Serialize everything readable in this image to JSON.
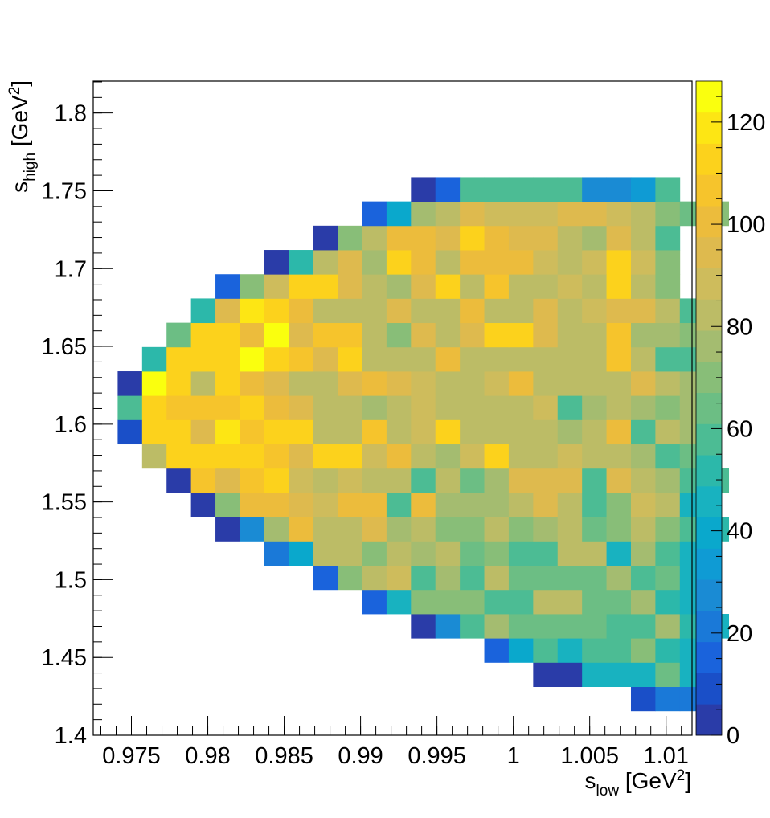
{
  "chart_data": {
    "type": "heatmap",
    "title": "",
    "xlabel": {
      "main": "s",
      "sub": "low",
      "unit_open": " [GeV",
      "sup": "2",
      "unit_close": "]"
    },
    "ylabel": {
      "main": "s",
      "sub": "high",
      "unit_open": " [GeV",
      "sup": "2",
      "unit_close": "]"
    },
    "xlim": [
      0.9725,
      1.0117
    ],
    "ylim": [
      1.4,
      1.8205
    ],
    "x_bin_width": 0.0016,
    "y_bin_width": 0.0156,
    "x_first_bin": 0.9741,
    "y_first_bin": 1.4156,
    "zlim": [
      0,
      128
    ],
    "x_ticks": [
      0.975,
      0.98,
      0.985,
      0.99,
      0.995,
      1.0,
      1.005,
      1.01
    ],
    "x_tick_labels": [
      "0.975",
      "0.98",
      "0.985",
      "0.99",
      "0.995",
      "1",
      "1.005",
      "1.01"
    ],
    "y_ticks": [
      1.4,
      1.45,
      1.5,
      1.55,
      1.6,
      1.65,
      1.7,
      1.75,
      1.8
    ],
    "y_tick_labels": [
      "1.4",
      "1.45",
      "1.5",
      "1.55",
      "1.6",
      "1.65",
      "1.7",
      "1.75",
      "1.8"
    ],
    "z_ticks": [
      0,
      20,
      40,
      60,
      80,
      100,
      120
    ],
    "z_tick_labels": [
      "0",
      "20",
      "40",
      "60",
      "80",
      "100",
      "120"
    ],
    "grid": false,
    "colorbar": "right",
    "palette": [
      "#2a3ca8",
      "#1a4fc8",
      "#1a63dc",
      "#1a79d8",
      "#1a8bd4",
      "#0f9bd4",
      "#0aa8cc",
      "#18b2c0",
      "#2cb8aa",
      "#4cbc94",
      "#6cbe84",
      "#88be78",
      "#a4bc70",
      "#bcbc66",
      "#cebc5c",
      "#deba4e",
      "#ecbc3c",
      "#f6c42c",
      "#fcd21c",
      "#fde614",
      "#faff0e"
    ],
    "rows": [
      {
        "start": 21,
        "values": [
          10,
          20,
          20
        ]
      },
      {
        "start": 17,
        "values": [
          5,
          5,
          45,
          45,
          45,
          65,
          45
        ]
      },
      {
        "start": 15,
        "values": [
          15,
          40,
          55,
          45,
          55,
          55,
          68,
          50,
          45
        ]
      },
      {
        "start": 12,
        "values": [
          5,
          30,
          55,
          75,
          65,
          65,
          65,
          65,
          60,
          60,
          75,
          50,
          45
        ]
      },
      {
        "start": 10,
        "values": [
          15,
          45,
          70,
          70,
          70,
          60,
          55,
          80,
          85,
          65,
          65,
          75,
          50,
          45
        ]
      },
      {
        "start": 8,
        "values": [
          15,
          70,
          85,
          88,
          60,
          75,
          60,
          80,
          65,
          65,
          65,
          65,
          75,
          55,
          65,
          45
        ]
      },
      {
        "start": 6,
        "values": [
          20,
          40,
          80,
          80,
          70,
          85,
          75,
          80,
          65,
          70,
          60,
          60,
          85,
          85,
          45,
          75,
          55,
          45
        ]
      },
      {
        "start": 4,
        "values": [
          5,
          30,
          75,
          100,
          80,
          80,
          95,
          75,
          85,
          70,
          70,
          80,
          70,
          75,
          85,
          65,
          70,
          80,
          70,
          60,
          50
        ]
      },
      {
        "start": 3,
        "values": [
          5,
          70,
          100,
          100,
          95,
          90,
          100,
          100,
          55,
          100,
          75,
          75,
          75,
          85,
          95,
          80,
          55,
          70,
          90,
          85,
          45
        ]
      },
      {
        "start": 2,
        "values": [
          5,
          105,
          95,
          105,
          110,
          90,
          85,
          90,
          85,
          80,
          60,
          85,
          65,
          75,
          95,
          95,
          95,
          55,
          95,
          80,
          75,
          60,
          55
        ]
      },
      {
        "start": 1,
        "values": [
          80,
          110,
          110,
          115,
          110,
          105,
          95,
          115,
          110,
          90,
          100,
          85,
          75,
          90,
          115,
          85,
          80,
          90,
          80,
          80,
          75,
          60,
          65
        ]
      },
      {
        "start": 0,
        "values": [
          10,
          110,
          110,
          95,
          120,
          105,
          110,
          110,
          85,
          85,
          105,
          80,
          90,
          110,
          80,
          85,
          80,
          85,
          75,
          80,
          100,
          60,
          85,
          75
        ]
      },
      {
        "start": 0,
        "values": [
          60,
          110,
          105,
          105,
          105,
          110,
          100,
          95,
          85,
          80,
          75,
          85,
          90,
          80,
          85,
          85,
          80,
          90,
          60,
          75,
          80,
          75,
          70,
          75
        ]
      },
      {
        "start": 0,
        "values": [
          5,
          125,
          115,
          85,
          110,
          100,
          95,
          85,
          85,
          95,
          100,
          95,
          90,
          80,
          80,
          90,
          100,
          85,
          85,
          85,
          80,
          95,
          85,
          75
        ]
      },
      {
        "start": 1,
        "values": [
          50,
          115,
          110,
          110,
          125,
          110,
          105,
          95,
          110,
          85,
          85,
          80,
          100,
          85,
          85,
          85,
          80,
          85,
          85,
          105,
          85,
          60,
          55
        ]
      },
      {
        "start": 2,
        "values": [
          65,
          110,
          110,
          100,
          125,
          95,
          105,
          105,
          85,
          70,
          95,
          85,
          95,
          110,
          110,
          95,
          85,
          80,
          105,
          75,
          75,
          70
        ]
      },
      {
        "start": 3,
        "values": [
          50,
          95,
          120,
          115,
          100,
          85,
          85,
          85,
          95,
          85,
          85,
          100,
          85,
          85,
          95,
          80,
          90,
          95,
          95,
          85,
          55
        ]
      },
      {
        "start": 4,
        "values": [
          15,
          70,
          90,
          110,
          115,
          95,
          85,
          75,
          95,
          110,
          85,
          105,
          85,
          85,
          90,
          80,
          110,
          85,
          70
        ]
      },
      {
        "start": 6,
        "values": [
          5,
          50,
          85,
          95,
          75,
          110,
          100,
          85,
          100,
          100,
          100,
          90,
          85,
          90,
          115,
          90,
          70
        ]
      },
      {
        "start": 8,
        "values": [
          5,
          70,
          85,
          100,
          100,
          95,
          110,
          100,
          95,
          95,
          85,
          75,
          95,
          85,
          60
        ]
      },
      {
        "start": 10,
        "values": [
          15,
          40,
          75,
          85,
          95,
          90,
          90,
          90,
          95,
          95,
          90,
          85,
          70,
          65,
          70
        ]
      },
      {
        "start": 12,
        "values": [
          5,
          15,
          60,
          60,
          60,
          60,
          55,
          30,
          25,
          35,
          60
        ]
      }
    ]
  }
}
